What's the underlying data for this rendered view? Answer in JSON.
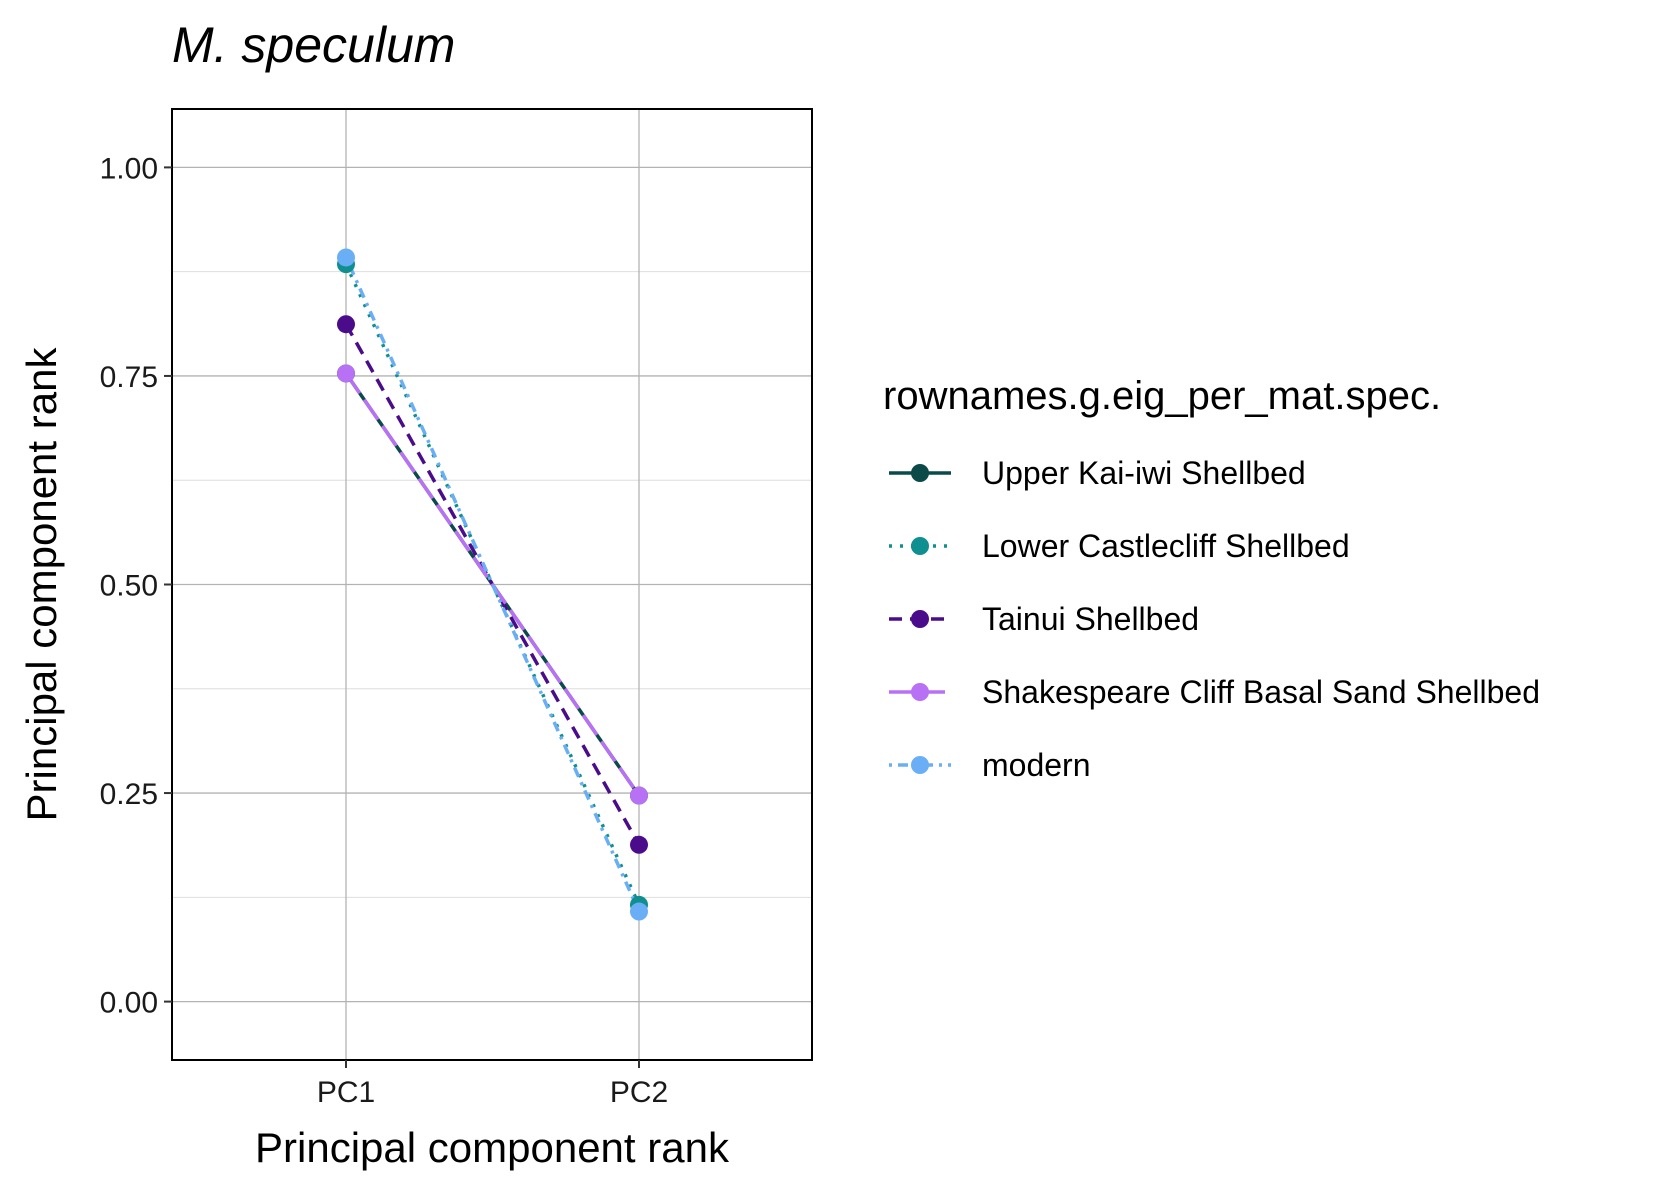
{
  "chart_data": {
    "type": "line",
    "title": "M. speculum",
    "xlabel": "Principal component rank",
    "ylabel": "Principal component rank",
    "categories": [
      "PC1",
      "PC2"
    ],
    "ylim": [
      -0.07,
      1.07
    ],
    "yticks": [
      0.0,
      0.25,
      0.5,
      0.75,
      1.0
    ],
    "ytick_labels": [
      "0.00",
      "0.25",
      "0.50",
      "0.75",
      "1.00"
    ],
    "grid": true,
    "legend": {
      "title": "rownames.g.eig_per_mat.spec.",
      "position": "right"
    },
    "series": [
      {
        "name": "Upper Kai-iwi Shellbed",
        "values": [
          0.753,
          0.247
        ],
        "color": "#0c4a4a",
        "dash": "solid"
      },
      {
        "name": "Lower Castlecliff Shellbed",
        "values": [
          0.884,
          0.116
        ],
        "color": "#0f8f8f",
        "dash": "dotted"
      },
      {
        "name": "Tainui Shellbed",
        "values": [
          0.812,
          0.188
        ],
        "color": "#4b0c8c",
        "dash": "dashed"
      },
      {
        "name": "Shakespeare Cliff Basal Sand Shellbed",
        "values": [
          0.753,
          0.247
        ],
        "color": "#b870f5",
        "dash": "longdash"
      },
      {
        "name": "modern",
        "values": [
          0.892,
          0.108
        ],
        "color": "#6aaff5",
        "dash": "dotdash"
      }
    ]
  }
}
